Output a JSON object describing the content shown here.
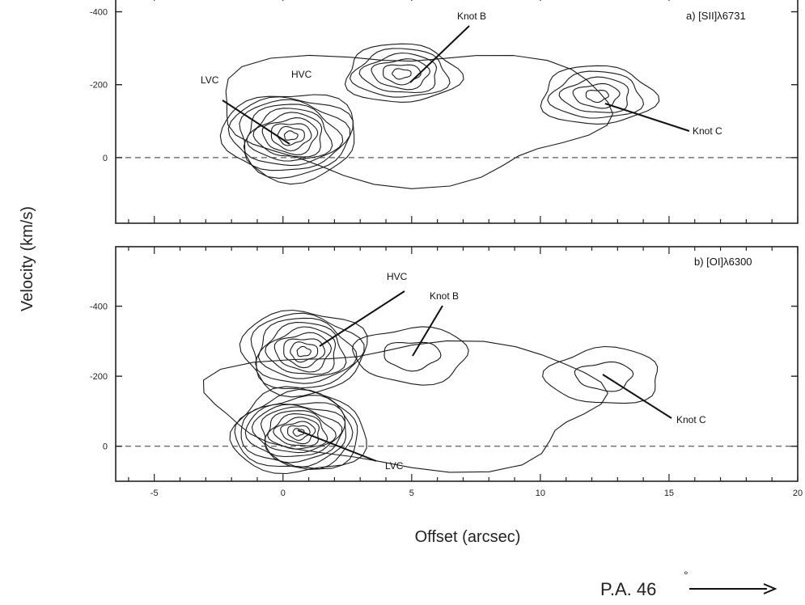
{
  "figure": {
    "ylabel": "Velocity (km/s)",
    "xlabel": "Offset (arcsec)",
    "position_angle": "P.A. 46",
    "position_angle_degree": "°"
  },
  "chart_data": [
    {
      "type": "contour",
      "title": "a) [SII]λ6731",
      "xlim": [
        -6.5,
        20
      ],
      "ylim": [
        -450,
        180
      ],
      "y_ticks": [
        0,
        -200,
        -400
      ],
      "x_ticks": [
        -5,
        0,
        5,
        10,
        15,
        20
      ],
      "zero_line": 0,
      "components": [
        {
          "label": "LVC",
          "x": 0.3,
          "y": -60,
          "levels": 10
        },
        {
          "label": "Knot B",
          "x": 4.6,
          "y": -230,
          "levels": 6
        },
        {
          "label": "Knot C",
          "x": 12.2,
          "y": -170,
          "levels": 5
        }
      ],
      "annotations": [
        "LVC",
        "HVC",
        "Knot B",
        "Knot C"
      ]
    },
    {
      "type": "contour",
      "title": "b) [OI]λ6300",
      "xlim": [
        -6.5,
        20
      ],
      "ylim": [
        -570,
        100
      ],
      "y_ticks": [
        0,
        -200,
        -400
      ],
      "x_ticks": [
        -5,
        0,
        5,
        10,
        15,
        20
      ],
      "x_tick_labels": [
        "-5",
        "0",
        "5",
        "10",
        "15",
        "20"
      ],
      "zero_line": 0,
      "components": [
        {
          "label": "HVC",
          "x": 0.8,
          "y": -270,
          "levels": 9
        },
        {
          "label": "LVC",
          "x": 0.6,
          "y": -40,
          "levels": 12
        },
        {
          "label": "Knot B",
          "x": 5.0,
          "y": -260,
          "levels": 2
        },
        {
          "label": "Knot C",
          "x": 12.5,
          "y": -200,
          "levels": 2
        }
      ],
      "annotations": [
        "HVC",
        "Knot B",
        "Knot C",
        "LVC"
      ]
    }
  ]
}
